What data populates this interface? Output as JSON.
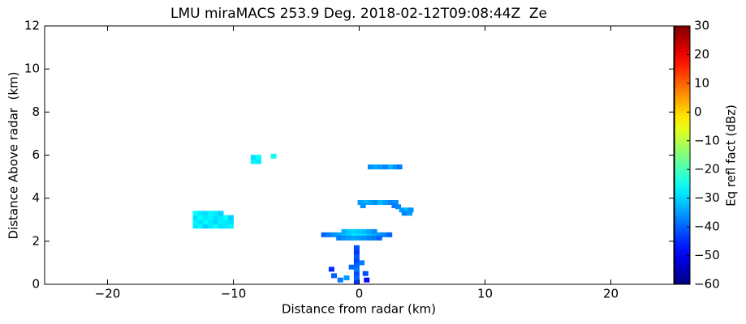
{
  "chart_data": {
    "type": "heatmap",
    "title": "LMU miraMACS 253.9 Deg. 2018-02-12T09:08:44Z  Ze",
    "x_label": "Distance from radar (km)",
    "y_label": "Distance Above radar  (km)",
    "colorbar_label": "Eq refl fact (dBz)",
    "colormap": "jet",
    "xlim": [
      -25,
      25
    ],
    "ylim": [
      0,
      12
    ],
    "clim": [
      -60,
      30
    ],
    "xticks": [
      {
        "value": -20,
        "label": "−20"
      },
      {
        "value": -10,
        "label": "−10"
      },
      0,
      10,
      20
    ],
    "yticks": [
      0,
      2,
      4,
      6,
      8,
      10,
      12
    ],
    "cticks": [
      {
        "value": -60,
        "label": "−60"
      },
      {
        "value": -50,
        "label": "−50"
      },
      {
        "value": -40,
        "label": "−40"
      },
      {
        "value": -30,
        "label": "−30"
      },
      {
        "value": -20,
        "label": "−20"
      },
      {
        "value": -10,
        "label": "−10"
      },
      0,
      10,
      20,
      30
    ],
    "cells": [
      [
        -13.0,
        2.7,
        -28
      ],
      [
        -12.6,
        2.7,
        -27
      ],
      [
        -12.2,
        2.7,
        -30
      ],
      [
        -11.8,
        2.7,
        -28
      ],
      [
        -11.4,
        2.7,
        -26
      ],
      [
        -11.0,
        2.7,
        -29
      ],
      [
        -10.6,
        2.7,
        -28
      ],
      [
        -10.2,
        2.7,
        -27
      ],
      [
        -13.0,
        2.9,
        -27
      ],
      [
        -12.6,
        2.9,
        -29
      ],
      [
        -12.2,
        2.9,
        -26
      ],
      [
        -11.8,
        2.9,
        -28
      ],
      [
        -11.4,
        2.9,
        -30
      ],
      [
        -11.0,
        2.9,
        -27
      ],
      [
        -10.6,
        2.9,
        -28
      ],
      [
        -10.2,
        2.9,
        -29
      ],
      [
        -13.0,
        3.1,
        -29
      ],
      [
        -12.6,
        3.1,
        -26
      ],
      [
        -12.2,
        3.1,
        -28
      ],
      [
        -11.8,
        3.1,
        -27
      ],
      [
        -11.4,
        3.1,
        -29
      ],
      [
        -11.0,
        3.1,
        -28
      ],
      [
        -10.6,
        3.1,
        -26
      ],
      [
        -10.2,
        3.1,
        -30
      ],
      [
        -13.0,
        3.3,
        -26
      ],
      [
        -12.6,
        3.3,
        -28
      ],
      [
        -12.2,
        3.3,
        -29
      ],
      [
        -11.8,
        3.3,
        -27
      ],
      [
        -11.4,
        3.3,
        -28
      ],
      [
        -11.0,
        3.3,
        -30
      ],
      [
        -8.4,
        5.7,
        -27
      ],
      [
        -8.0,
        5.7,
        -28
      ],
      [
        -8.4,
        5.9,
        -29
      ],
      [
        -8.0,
        5.9,
        -26
      ],
      [
        -6.8,
        5.95,
        -25
      ],
      [
        0.9,
        5.45,
        -36
      ],
      [
        1.3,
        5.45,
        -34
      ],
      [
        1.7,
        5.45,
        -35
      ],
      [
        2.1,
        5.45,
        -37
      ],
      [
        2.5,
        5.45,
        -33
      ],
      [
        2.9,
        5.45,
        -36
      ],
      [
        3.2,
        5.45,
        -38
      ],
      [
        0.1,
        3.8,
        -35
      ],
      [
        0.5,
        3.8,
        -33
      ],
      [
        0.9,
        3.8,
        -34
      ],
      [
        1.3,
        3.8,
        -36
      ],
      [
        1.7,
        3.8,
        -32
      ],
      [
        2.1,
        3.8,
        -35
      ],
      [
        2.5,
        3.8,
        -37
      ],
      [
        2.9,
        3.8,
        -36
      ],
      [
        0.3,
        3.65,
        -36
      ],
      [
        2.8,
        3.65,
        -38
      ],
      [
        3.1,
        3.6,
        -37
      ],
      [
        3.4,
        3.45,
        -35
      ],
      [
        3.8,
        3.45,
        -33
      ],
      [
        4.1,
        3.45,
        -36
      ],
      [
        3.6,
        3.3,
        -37
      ],
      [
        4.0,
        3.3,
        -35
      ],
      [
        -2.8,
        2.3,
        -40
      ],
      [
        -2.4,
        2.3,
        -38
      ],
      [
        -2.0,
        2.3,
        -36
      ],
      [
        -1.6,
        2.3,
        -34
      ],
      [
        -1.2,
        2.3,
        -32
      ],
      [
        -0.8,
        2.3,
        -30
      ],
      [
        -0.4,
        2.3,
        -28
      ],
      [
        0.0,
        2.3,
        -28
      ],
      [
        0.4,
        2.3,
        -29
      ],
      [
        0.8,
        2.3,
        -31
      ],
      [
        1.2,
        2.3,
        -33
      ],
      [
        1.6,
        2.3,
        -35
      ],
      [
        2.0,
        2.3,
        -37
      ],
      [
        2.4,
        2.3,
        -40
      ],
      [
        -1.2,
        2.45,
        -33
      ],
      [
        -0.8,
        2.45,
        -31
      ],
      [
        -0.4,
        2.45,
        -30
      ],
      [
        0.0,
        2.45,
        -31
      ],
      [
        0.4,
        2.45,
        -32
      ],
      [
        0.8,
        2.45,
        -34
      ],
      [
        1.2,
        2.45,
        -36
      ],
      [
        -1.6,
        2.15,
        -38
      ],
      [
        -1.2,
        2.15,
        -36
      ],
      [
        -0.8,
        2.15,
        -35
      ],
      [
        -0.4,
        2.15,
        -34
      ],
      [
        0.0,
        2.15,
        -35
      ],
      [
        0.4,
        2.15,
        -36
      ],
      [
        0.8,
        2.15,
        -37
      ],
      [
        1.2,
        2.15,
        -38
      ],
      [
        1.6,
        2.15,
        -40
      ],
      [
        -0.2,
        0.1,
        -44
      ],
      [
        -0.2,
        0.3,
        -40
      ],
      [
        -0.2,
        0.5,
        -42
      ],
      [
        -0.2,
        0.7,
        -38
      ],
      [
        -0.2,
        0.9,
        -40
      ],
      [
        -0.2,
        1.1,
        -43
      ],
      [
        -0.2,
        1.3,
        -41
      ],
      [
        -0.2,
        1.5,
        -44
      ],
      [
        -0.2,
        1.7,
        -42
      ],
      [
        -2.2,
        0.7,
        -45
      ],
      [
        -2.0,
        0.4,
        -40
      ],
      [
        -1.5,
        0.2,
        -38
      ],
      [
        -1.0,
        0.3,
        -35
      ],
      [
        0.5,
        0.5,
        -42
      ],
      [
        0.6,
        0.2,
        -48
      ],
      [
        -0.6,
        0.8,
        -40
      ],
      [
        0.2,
        1.0,
        -38
      ]
    ]
  }
}
